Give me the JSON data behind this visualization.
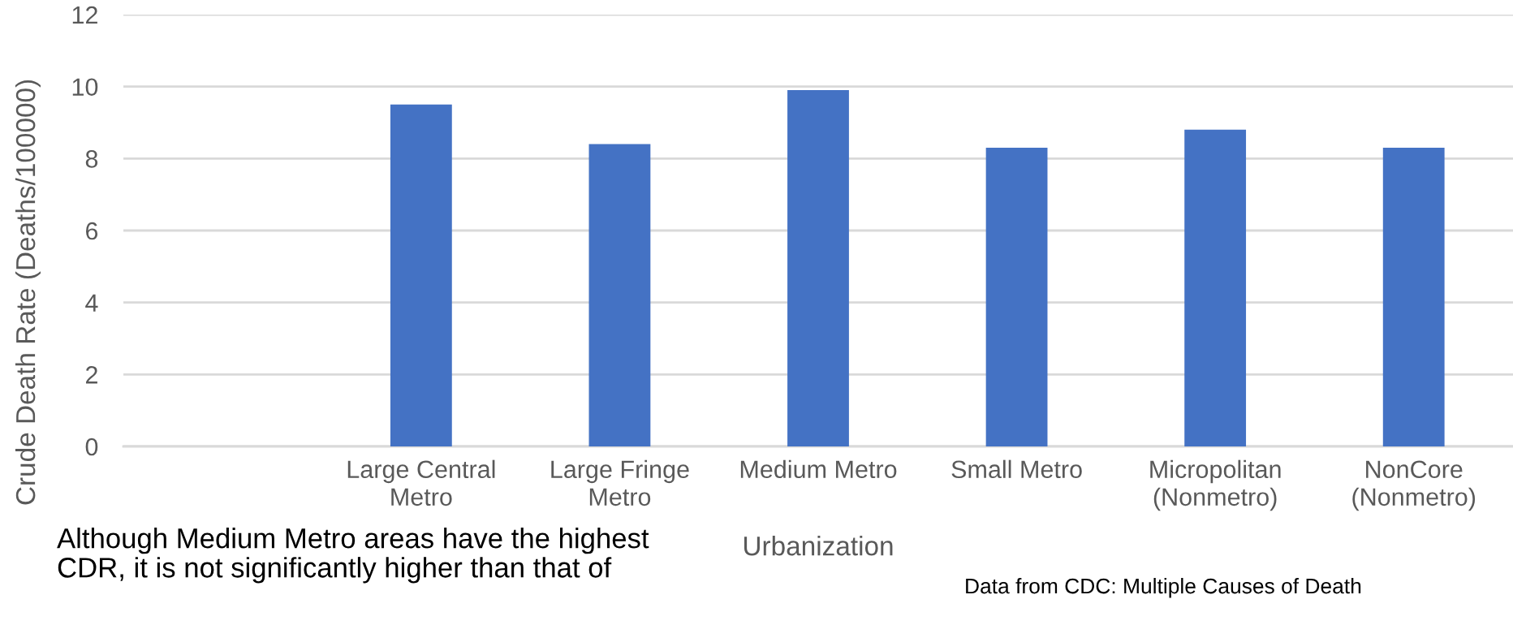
{
  "chart_data": {
    "type": "bar",
    "categories": [
      null,
      "Large Central Metro",
      "Large Fringe Metro",
      "Medium Metro",
      "Small Metro",
      "Micropolitan (Nonmetro)",
      "NonCore (Nonmetro)"
    ],
    "values": [
      null,
      9.5,
      8.4,
      9.9,
      8.3,
      8.8,
      8.3
    ],
    "color": "#4472c4",
    "xlabel": "Urbanization",
    "ylabel": "Crude Death Rate (Deaths/100000)",
    "ylim": [
      0,
      12
    ],
    "yticks": [
      0,
      2,
      4,
      6,
      8,
      10,
      12
    ],
    "grid": "y",
    "annotations": [
      "Although Medium Metro areas have the highest CDR, it is not significantly higher than that of",
      "Data from CDC: Multiple Causes of Death"
    ]
  }
}
